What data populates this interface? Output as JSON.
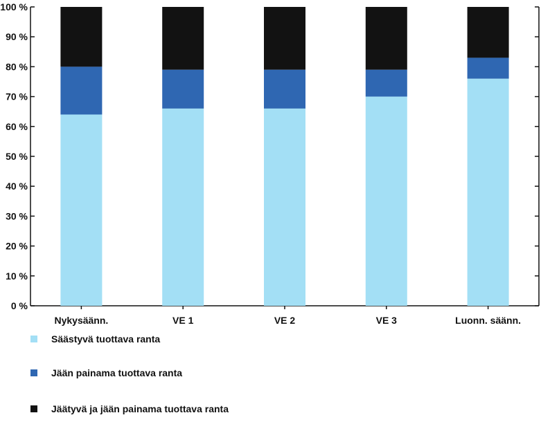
{
  "chart_data": {
    "type": "bar",
    "stacked": true,
    "percent": true,
    "categories": [
      "Nykysäänn.",
      "VE 1",
      "VE 2",
      "VE 3",
      "Luonn. säänn."
    ],
    "series": [
      {
        "name": "Säästyvä tuottava ranta",
        "color": "#a3dff5",
        "values": [
          64,
          66,
          66,
          70,
          76
        ]
      },
      {
        "name": "Jään painama tuottava ranta",
        "color": "#2f67b2",
        "values": [
          16,
          13,
          13,
          9,
          7
        ]
      },
      {
        "name": "Jäätyvä ja jään painama tuottava ranta",
        "color": "#121212",
        "values": [
          20,
          21,
          21,
          21,
          17
        ]
      }
    ],
    "yticks": [
      "0 %",
      "10 %",
      "20 %",
      "30 %",
      "40 %",
      "50 %",
      "60 %",
      "70 %",
      "80 %",
      "90 %",
      "100 %"
    ],
    "ylim": [
      0,
      100
    ],
    "grid": false,
    "legend_position": "bottom-left"
  }
}
